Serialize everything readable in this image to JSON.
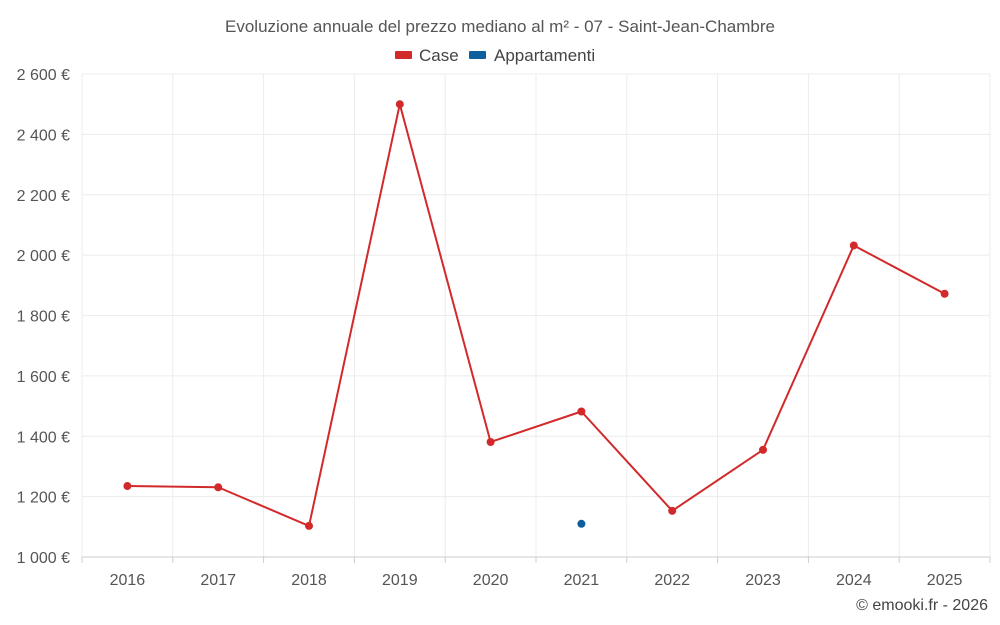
{
  "chart_data": {
    "type": "line",
    "title": "Evoluzione annuale del prezzo mediano al m² - 07 - Saint-Jean-Chambre",
    "categories": [
      "2016",
      "2017",
      "2018",
      "2019",
      "2020",
      "2021",
      "2022",
      "2023",
      "2024",
      "2025"
    ],
    "ylim": [
      1000,
      2600
    ],
    "yticks": [
      1000,
      1200,
      1400,
      1600,
      1800,
      2000,
      2200,
      2400,
      2600
    ],
    "ytick_labels": [
      "1 000 €",
      "1 200 €",
      "1 400 €",
      "1 600 €",
      "1 800 €",
      "2 000 €",
      "2 200 €",
      "2 400 €",
      "2 600 €"
    ],
    "grid": true,
    "legend_position": "top-center",
    "series": [
      {
        "name": "Case",
        "color": "#d22a2a",
        "values": [
          1235,
          1231,
          1103,
          2500,
          1381,
          1482,
          1153,
          1355,
          2032,
          1872
        ]
      },
      {
        "name": "Appartamenti",
        "color": "#0e5f9e",
        "values": [
          null,
          null,
          null,
          null,
          null,
          1110,
          null,
          null,
          null,
          null
        ]
      }
    ],
    "credit": "© emooki.fr - 2026"
  }
}
